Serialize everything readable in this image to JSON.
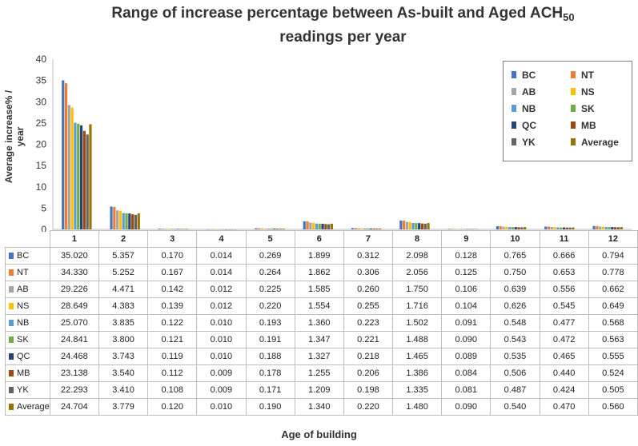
{
  "chart_data": {
    "type": "bar",
    "title": "Range of increase percentage between As-built and Aged ACH",
    "title_subscript": "50",
    "title_suffix": "readings per year",
    "xlabel": "Age of building",
    "ylabel": "Average increase% / year",
    "ylim": [
      0,
      40
    ],
    "yticks": [
      0,
      5,
      10,
      15,
      20,
      25,
      30,
      35,
      40
    ],
    "legend_position": "top-right",
    "categories": [
      "1",
      "2",
      "3",
      "4",
      "5",
      "6",
      "7",
      "8",
      "9",
      "10",
      "11",
      "12"
    ],
    "series": [
      {
        "name": "BC",
        "color": "#4472c4",
        "values": [
          "35.020",
          "5.357",
          "0.170",
          "0.014",
          "0.269",
          "1.899",
          "0.312",
          "2.098",
          "0.128",
          "0.765",
          "0.666",
          "0.794"
        ]
      },
      {
        "name": "NT",
        "color": "#ed7d31",
        "values": [
          "34.330",
          "5.252",
          "0.167",
          "0.014",
          "0.264",
          "1.862",
          "0.306",
          "2.056",
          "0.125",
          "0.750",
          "0.653",
          "0.778"
        ]
      },
      {
        "name": "AB",
        "color": "#a5a5a5",
        "values": [
          "29.226",
          "4.471",
          "0.142",
          "0.012",
          "0.225",
          "1.585",
          "0.260",
          "1.750",
          "0.106",
          "0.639",
          "0.556",
          "0.662"
        ]
      },
      {
        "name": "NS",
        "color": "#ffc000",
        "values": [
          "28.649",
          "4.383",
          "0.139",
          "0.012",
          "0.220",
          "1.554",
          "0.255",
          "1.716",
          "0.104",
          "0.626",
          "0.545",
          "0.649"
        ]
      },
      {
        "name": "NB",
        "color": "#5b9bd5",
        "values": [
          "25.070",
          "3.835",
          "0.122",
          "0.010",
          "0.193",
          "1.360",
          "0.223",
          "1.502",
          "0.091",
          "0.548",
          "0.477",
          "0.568"
        ]
      },
      {
        "name": "SK",
        "color": "#70ad47",
        "values": [
          "24.841",
          "3.800",
          "0.121",
          "0.010",
          "0.191",
          "1.347",
          "0.221",
          "1.488",
          "0.090",
          "0.543",
          "0.472",
          "0.563"
        ]
      },
      {
        "name": "QC",
        "color": "#264478",
        "values": [
          "24.468",
          "3.743",
          "0.119",
          "0.010",
          "0.188",
          "1.327",
          "0.218",
          "1.465",
          "0.089",
          "0.535",
          "0.465",
          "0.555"
        ]
      },
      {
        "name": "MB",
        "color": "#9e480e",
        "values": [
          "23.138",
          "3.540",
          "0.112",
          "0.009",
          "0.178",
          "1.255",
          "0.206",
          "1.386",
          "0.084",
          "0.506",
          "0.440",
          "0.524"
        ]
      },
      {
        "name": "YK",
        "color": "#636363",
        "values": [
          "22.293",
          "3.410",
          "0.108",
          "0.009",
          "0.171",
          "1.209",
          "0.198",
          "1.335",
          "0.081",
          "0.487",
          "0.424",
          "0.505"
        ]
      },
      {
        "name": "Average",
        "color": "#997300",
        "values": [
          "24.704",
          "3.779",
          "0.120",
          "0.010",
          "0.190",
          "1.340",
          "0.220",
          "1.480",
          "0.090",
          "0.540",
          "0.470",
          "0.560"
        ]
      }
    ]
  }
}
